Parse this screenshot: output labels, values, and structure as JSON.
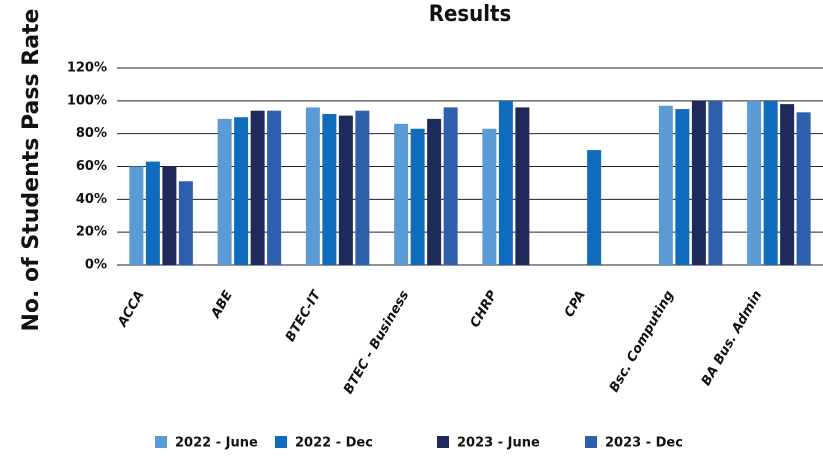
{
  "chart_data": {
    "type": "bar",
    "title": "Results",
    "y_label": "No. of Students Pass Rate",
    "categories": [
      "ACCA",
      "ABE",
      "BTEC-IT",
      "BTEC - Business",
      "CHRP",
      "CPA",
      "Bsc. Computing",
      "BA Bus. Admin"
    ],
    "series": [
      {
        "name": "2022 - June",
        "color": "#5b9bd5",
        "values": [
          60,
          89,
          96,
          86,
          83,
          null,
          97,
          100
        ]
      },
      {
        "name": "2022 - Dec",
        "color": "#0f6cbd",
        "values": [
          63,
          90,
          92,
          83,
          100,
          70,
          95,
          100
        ]
      },
      {
        "name": "2023 - June",
        "color": "#1f2a5c",
        "values": [
          60,
          94,
          91,
          89,
          96,
          null,
          100,
          98
        ]
      },
      {
        "name": "2023 - Dec",
        "color": "#2e5fad",
        "values": [
          51,
          94,
          94,
          96,
          null,
          null,
          100,
          93
        ]
      }
    ],
    "ylim": [
      0,
      120
    ],
    "yticks": [
      {
        "value": 0,
        "label": "0%"
      },
      {
        "value": 20,
        "label": "20%"
      },
      {
        "value": 40,
        "label": "40%"
      },
      {
        "value": 60,
        "label": "60%"
      },
      {
        "value": 80,
        "label": "80%"
      },
      {
        "value": 100,
        "label": "100%"
      },
      {
        "value": 120,
        "label": "120%"
      }
    ],
    "grid": true,
    "legend": "bottom"
  }
}
